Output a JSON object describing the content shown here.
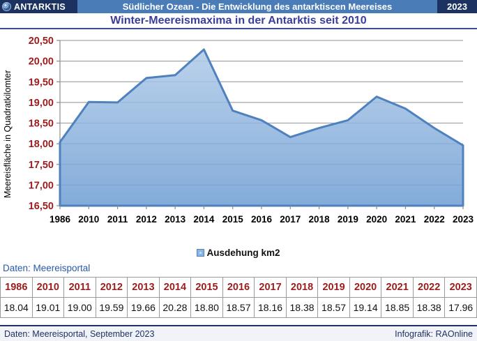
{
  "header": {
    "brand": "ANTARKTIS",
    "title": "Südlicher Ozean - Die Entwicklung des antarktiscen Meereises",
    "year_badge": "2023",
    "subtitle": "Winter-Meereismaxima in der Antarktis seit 2010"
  },
  "chart_data": {
    "type": "area",
    "title": "Winter-Meereismaxima in der Antarktis seit 2010",
    "categories": [
      "1986",
      "2010",
      "2011",
      "2012",
      "2013",
      "2014",
      "2015",
      "2016",
      "2017",
      "2018",
      "2019",
      "2020",
      "2021",
      "2022",
      "2023"
    ],
    "series": [
      {
        "name": "Ausdehung km2",
        "values": [
          18.04,
          19.01,
          19.0,
          19.59,
          19.66,
          20.28,
          18.8,
          18.57,
          18.16,
          18.38,
          18.57,
          19.14,
          18.85,
          18.38,
          17.96
        ]
      }
    ],
    "xlabel": "",
    "ylabel": "Meereisfläche in Quadratkilomter",
    "ylim": [
      16.5,
      20.5
    ],
    "ytick_step": 0.5,
    "ytick_labels": [
      "16,50",
      "17,00",
      "17,50",
      "18,00",
      "18,50",
      "19,00",
      "19,50",
      "20,00",
      "20,50"
    ],
    "grid": "horizontal",
    "legend_position": "bottom",
    "decimal_separator": ",",
    "colors": {
      "area_fill_top": "#AFCAE8",
      "area_fill_bottom": "#6D9DD3",
      "line": "#4E81BD",
      "gridline": "#A6A6A6",
      "axis": "#8C8C8C",
      "ytick_label": "#9B1C1C",
      "xtick_label": "#000000"
    }
  },
  "legend": {
    "label": "Ausdehung km2",
    "swatch_color": "#8DB4E2"
  },
  "source_note": "Daten: Meereisportal",
  "table": {
    "years": [
      "1986",
      "2010",
      "2011",
      "2012",
      "2013",
      "2014",
      "2015",
      "2016",
      "2017",
      "2018",
      "2019",
      "2020",
      "2021",
      "2022",
      "2023"
    ],
    "values": [
      "18.04",
      "19.01",
      "19.00",
      "19.59",
      "19.66",
      "20.28",
      "18.80",
      "18.57",
      "18.16",
      "18.38",
      "18.57",
      "19.14",
      "18.85",
      "18.38",
      "17.96"
    ]
  },
  "footer": {
    "left": "Daten: Meereisportal, September 2023",
    "right": "Infografik: RAOnline"
  }
}
